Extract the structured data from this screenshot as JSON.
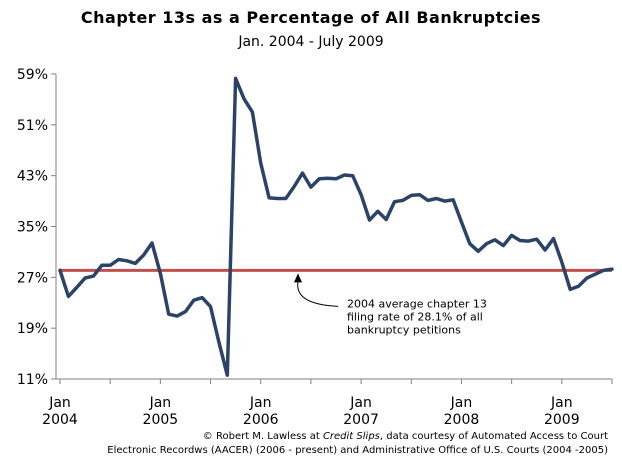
{
  "chart_data": {
    "type": "line",
    "title": "Chapter 13s as a Percentage of All Bankruptcies",
    "subtitle": "Jan. 2004 - July 2009",
    "xlabel": "",
    "ylabel": "",
    "ylim": [
      11,
      59
    ],
    "y_ticks": [
      "59%",
      "51%",
      "43%",
      "35%",
      "27%",
      "19%",
      "11%"
    ],
    "y_tick_values": [
      59,
      51,
      43,
      35,
      27,
      19,
      11
    ],
    "x_ticks": [
      {
        "label": "Jan\n2004",
        "month_index": 0
      },
      {
        "label": "Jan\n2005",
        "month_index": 12
      },
      {
        "label": "Jan\n2006",
        "month_index": 24
      },
      {
        "label": "Jan\n2007",
        "month_index": 36
      },
      {
        "label": "Jan\n2008",
        "month_index": 48
      },
      {
        "label": "Jan\n2009",
        "month_index": 60
      }
    ],
    "grid": false,
    "series": [
      {
        "color": "#2b4368",
        "values": [
          28.1,
          24.0,
          25.4,
          26.9,
          27.2,
          28.9,
          28.9,
          29.8,
          29.6,
          29.2,
          30.5,
          32.4,
          27.6,
          21.2,
          20.9,
          21.6,
          23.4,
          23.8,
          22.4,
          16.8,
          11.6,
          58.3,
          55.1,
          53.0,
          45.0,
          39.5,
          39.4,
          39.4,
          41.3,
          43.4,
          41.2,
          42.5,
          42.6,
          42.5,
          43.1,
          43.0,
          40.0,
          36.0,
          37.4,
          36.1,
          38.9,
          39.1,
          39.9,
          40.0,
          39.1,
          39.4,
          39.0,
          39.2,
          35.7,
          32.3,
          31.1,
          32.3,
          32.9,
          32.0,
          33.6,
          32.8,
          32.7,
          33.0,
          31.3,
          33.1,
          29.4,
          25.1,
          25.6,
          26.9,
          27.5,
          28.1,
          28.3
        ]
      },
      {
        "color": "#c0504d",
        "values_constant": 28.1
      }
    ],
    "annotations": [
      {
        "text_lines": [
          "2004 average chapter 13",
          "filing rate of 28.1% of all",
          "bankruptcy petitions"
        ]
      }
    ]
  },
  "credit": {
    "line1_prefix": "© Robert M. Lawless at ",
    "line1_italic": "Credit Slips",
    "line1_suffix": ", data courtesy of Automated Access to Court",
    "line2": "Electronic Recordws (AACER) (2006 - present) and Administrative Office of U.S. Courts (2004 -2005)"
  }
}
